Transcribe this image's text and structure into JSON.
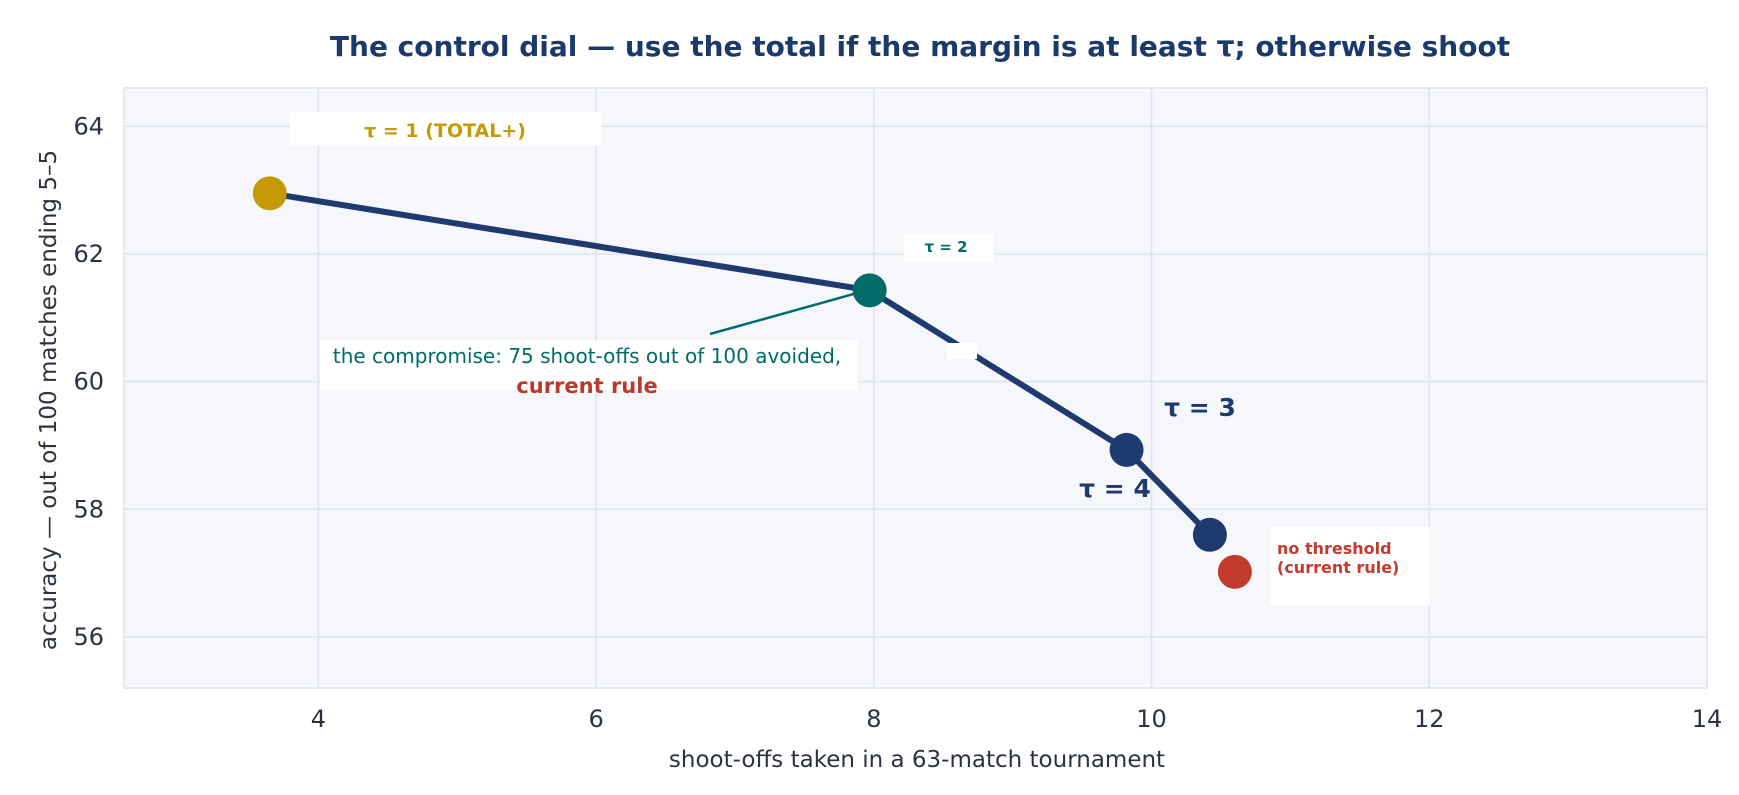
{
  "chart_data": {
    "type": "line",
    "title": "The control dial — use the total if the margin is at least τ; otherwise shoot",
    "xlabel": "shoot-offs taken in a 63-match tournament",
    "ylabel": "accuracy — out of 100 matches ending 5–5",
    "xlim": [
      2.6,
      14
    ],
    "ylim": [
      55.2,
      64.6
    ],
    "xticks": [
      4,
      6,
      8,
      10,
      12,
      14
    ],
    "yticks": [
      56,
      58,
      60,
      62,
      64
    ],
    "grid": true,
    "series": [
      {
        "points": [
          {
            "x": 3.65,
            "y": 62.95,
            "label": "τ = 1 (TOTAL+)",
            "color": "#c49a06"
          },
          {
            "x": 7.97,
            "y": 61.43,
            "label": "τ = 2",
            "color": "#006b68"
          },
          {
            "x": 9.82,
            "y": 58.93,
            "label": "τ = 3",
            "color": "#1e3a6e"
          },
          {
            "x": 10.42,
            "y": 57.6,
            "label": "τ = 4",
            "color": "#1e3a6e"
          }
        ],
        "line_color": "#1e3a6e"
      }
    ],
    "reference_point": {
      "x": 10.6,
      "y": 57.02,
      "label_line1": "no threshold",
      "label_line2": "(current rule)",
      "color": "#c23b2d"
    },
    "annotations": {
      "compromise_text": "the compromise: 75 shoot-offs out of 100 avoided,",
      "compromise_emphasis": "current rule",
      "compromise_color": "#006b68",
      "emphasis_color": "#b83a2c"
    }
  }
}
